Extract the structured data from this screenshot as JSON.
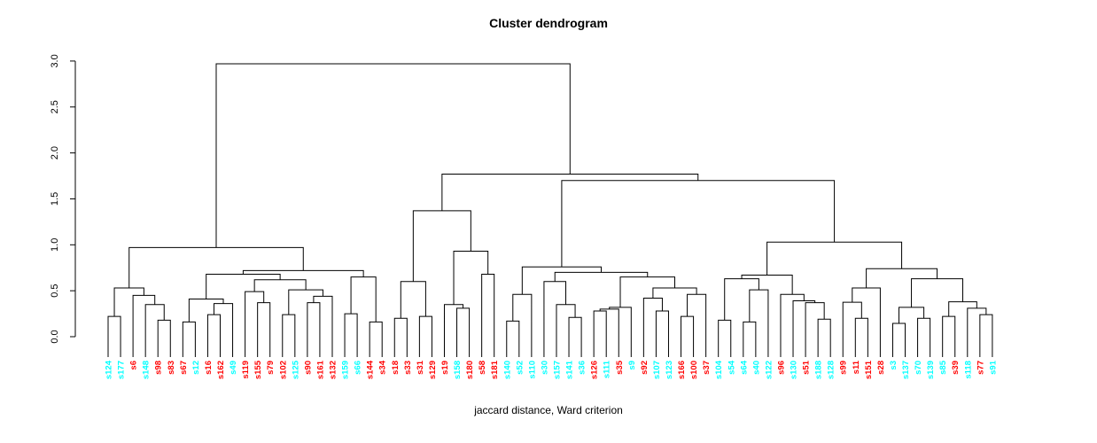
{
  "chart_data": {
    "type": "dendrogram",
    "title": "Cluster dendrogram",
    "xlabel": "jaccard distance, Ward criterion",
    "ylabel": "",
    "ylim": [
      0.0,
      3.0
    ],
    "yticks": [
      "0.0",
      "0.5",
      "1.0",
      "1.5",
      "2.0",
      "2.5",
      "3.0"
    ],
    "grid": false,
    "legend": "none",
    "colors": {
      "red": "#FF0000",
      "cyan": "#00FFFF",
      "line": "#000000"
    },
    "leaves": [
      {
        "label": "s124",
        "color": "cyan"
      },
      {
        "label": "s177",
        "color": "cyan"
      },
      {
        "label": "s6",
        "color": "red"
      },
      {
        "label": "s148",
        "color": "cyan"
      },
      {
        "label": "s98",
        "color": "red"
      },
      {
        "label": "s83",
        "color": "red"
      },
      {
        "label": "s67",
        "color": "red"
      },
      {
        "label": "s12",
        "color": "cyan"
      },
      {
        "label": "s16",
        "color": "red"
      },
      {
        "label": "s162",
        "color": "red"
      },
      {
        "label": "s49",
        "color": "cyan"
      },
      {
        "label": "s119",
        "color": "red"
      },
      {
        "label": "s155",
        "color": "red"
      },
      {
        "label": "s79",
        "color": "red"
      },
      {
        "label": "s102",
        "color": "red"
      },
      {
        "label": "s125",
        "color": "cyan"
      },
      {
        "label": "s90",
        "color": "red"
      },
      {
        "label": "s161",
        "color": "red"
      },
      {
        "label": "s132",
        "color": "red"
      },
      {
        "label": "s159",
        "color": "cyan"
      },
      {
        "label": "s66",
        "color": "cyan"
      },
      {
        "label": "s144",
        "color": "red"
      },
      {
        "label": "s34",
        "color": "red"
      },
      {
        "label": "s18",
        "color": "red"
      },
      {
        "label": "s33",
        "color": "red"
      },
      {
        "label": "s31",
        "color": "red"
      },
      {
        "label": "s129",
        "color": "red"
      },
      {
        "label": "s19",
        "color": "red"
      },
      {
        "label": "s158",
        "color": "cyan"
      },
      {
        "label": "s180",
        "color": "red"
      },
      {
        "label": "s58",
        "color": "red"
      },
      {
        "label": "s181",
        "color": "red"
      },
      {
        "label": "s140",
        "color": "cyan"
      },
      {
        "label": "s52",
        "color": "cyan"
      },
      {
        "label": "s110",
        "color": "cyan"
      },
      {
        "label": "s30",
        "color": "cyan"
      },
      {
        "label": "s157",
        "color": "cyan"
      },
      {
        "label": "s141",
        "color": "cyan"
      },
      {
        "label": "s36",
        "color": "cyan"
      },
      {
        "label": "s126",
        "color": "red"
      },
      {
        "label": "s111",
        "color": "cyan"
      },
      {
        "label": "s35",
        "color": "red"
      },
      {
        "label": "s9",
        "color": "cyan"
      },
      {
        "label": "s92",
        "color": "red"
      },
      {
        "label": "s107",
        "color": "cyan"
      },
      {
        "label": "s123",
        "color": "cyan"
      },
      {
        "label": "s166",
        "color": "red"
      },
      {
        "label": "s100",
        "color": "red"
      },
      {
        "label": "s37",
        "color": "red"
      },
      {
        "label": "s104",
        "color": "cyan"
      },
      {
        "label": "s54",
        "color": "cyan"
      },
      {
        "label": "s64",
        "color": "cyan"
      },
      {
        "label": "s40",
        "color": "cyan"
      },
      {
        "label": "s122",
        "color": "cyan"
      },
      {
        "label": "s96",
        "color": "red"
      },
      {
        "label": "s130",
        "color": "cyan"
      },
      {
        "label": "s51",
        "color": "red"
      },
      {
        "label": "s188",
        "color": "cyan"
      },
      {
        "label": "s128",
        "color": "cyan"
      },
      {
        "label": "s99",
        "color": "red"
      },
      {
        "label": "s11",
        "color": "red"
      },
      {
        "label": "s151",
        "color": "red"
      },
      {
        "label": "s28",
        "color": "red"
      },
      {
        "label": "s3",
        "color": "cyan"
      },
      {
        "label": "s137",
        "color": "cyan"
      },
      {
        "label": "s70",
        "color": "cyan"
      },
      {
        "label": "s139",
        "color": "cyan"
      },
      {
        "label": "s85",
        "color": "cyan"
      },
      {
        "label": "s39",
        "color": "red"
      },
      {
        "label": "s118",
        "color": "cyan"
      },
      {
        "label": "s77",
        "color": "red"
      },
      {
        "label": "s91",
        "color": "cyan"
      }
    ],
    "tree": [
      2.97,
      [
        0.97,
        [
          0.53,
          [
            0.22,
            "s124",
            "s177"
          ],
          [
            0.45,
            "s6",
            [
              0.35,
              "s148",
              [
                0.18,
                "s98",
                "s83"
              ]
            ]
          ]
        ],
        [
          0.72,
          [
            0.68,
            [
              0.41,
              [
                0.16,
                "s67",
                "s12"
              ],
              [
                0.36,
                [
                  0.24,
                  "s16",
                  "s162"
                ],
                "s49"
              ]
            ],
            [
              0.62,
              [
                0.49,
                "s119",
                [
                  0.37,
                  "s155",
                  "s79"
                ]
              ],
              [
                0.51,
                [
                  0.24,
                  "s102",
                  "s125"
                ],
                [
                  0.44,
                  [
                    0.37,
                    "s90",
                    "s161"
                  ],
                  "s132"
                ]
              ]
            ]
          ],
          [
            0.65,
            [
              0.25,
              "s159",
              "s66"
            ],
            [
              0.16,
              "s144",
              "s34"
            ]
          ]
        ]
      ],
      [
        1.77,
        [
          1.37,
          [
            0.6,
            [
              0.2,
              "s18",
              "s33"
            ],
            [
              0.22,
              "s31",
              "s129"
            ]
          ],
          [
            0.93,
            [
              0.35,
              "s19",
              [
                0.31,
                "s158",
                "s180"
              ]
            ],
            [
              0.68,
              "s58",
              "s181"
            ]
          ]
        ],
        [
          1.7,
          [
            0.76,
            [
              0.46,
              [
                0.17,
                "s140",
                "s52"
              ],
              "s110"
            ],
            [
              0.7,
              [
                0.6,
                "s30",
                [
                  0.35,
                  "s157",
                  [
                    0.21,
                    "s141",
                    "s36"
                  ]
                ]
              ],
              [
                0.65,
                [
                  0.32,
                  [
                    0.3,
                    [
                      0.28,
                      "s126",
                      "s111"
                    ],
                    "s35"
                  ],
                  "s9"
                ],
                [
                  0.53,
                  [
                    0.42,
                    "s92",
                    [
                      0.28,
                      "s107",
                      "s123"
                    ]
                  ],
                  [
                    0.46,
                    [
                      0.22,
                      "s166",
                      "s100"
                    ],
                    "s37"
                  ]
                ]
              ]
            ]
          ],
          [
            1.03,
            [
              0.67,
              [
                0.63,
                [
                  0.18,
                  "s104",
                  "s54"
                ],
                [
                  0.51,
                  [
                    0.16,
                    "s64",
                    "s40"
                  ],
                  "s122"
                ]
              ],
              [
                0.46,
                "s96",
                [
                  0.39,
                  "s130",
                  [
                    0.37,
                    "s51",
                    [
                      0.19,
                      "s188",
                      "s128"
                    ]
                  ]
                ]
              ]
            ],
            [
              0.74,
              [
                0.53,
                [
                  0.375,
                  "s99",
                  [
                    0.2,
                    "s11",
                    "s151"
                  ]
                ],
                "s28"
              ],
              [
                0.63,
                [
                  0.32,
                  [
                    0.145,
                    "s3",
                    "s137"
                  ],
                  [
                    0.2,
                    "s70",
                    "s139"
                  ]
                ],
                [
                  0.38,
                  [
                    0.22,
                    "s85",
                    "s39"
                  ],
                  [
                    0.31,
                    "s118",
                    [
                      0.24,
                      "s77",
                      "s91"
                    ]
                  ]
                ]
              ]
            ]
          ]
        ]
      ]
    ]
  }
}
